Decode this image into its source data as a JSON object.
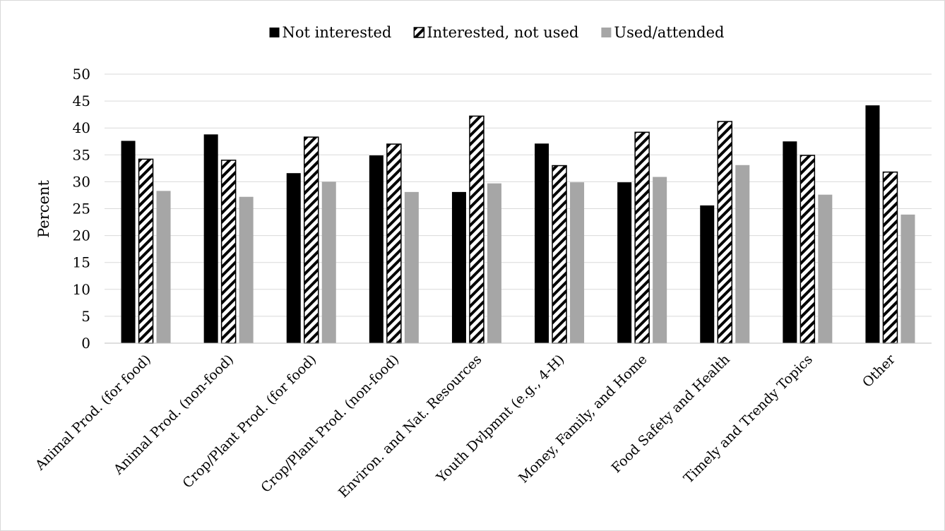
{
  "chart_data": {
    "type": "bar",
    "title": "",
    "xlabel": "",
    "ylabel": "Percent",
    "ylim": [
      0,
      50
    ],
    "yticks": [
      0,
      5,
      10,
      15,
      20,
      25,
      30,
      35,
      40,
      45,
      50
    ],
    "grid": true,
    "legend_position": "top-center",
    "categories": [
      "Animal Prod. (for food)",
      "Animal Prod. (non-food)",
      "Crop/Plant Prod. (for food)",
      "Crop/Plant Prod. (non-food)",
      "Environ. and Nat. Resources",
      "Youth Dvlpmnt (e.g., 4-H)",
      "Money, Family, and Home",
      "Food Safety and Health",
      "Timely and Trendy Topics",
      "Other"
    ],
    "series": [
      {
        "name": "Not interested",
        "fill": "solid",
        "color": "#000000",
        "values": [
          37.6,
          38.8,
          31.6,
          34.9,
          28.1,
          37.1,
          29.9,
          25.6,
          37.5,
          44.2
        ]
      },
      {
        "name": "Interested, not used",
        "fill": "diagonal-hatch",
        "color": "#000000",
        "values": [
          34.2,
          34.0,
          38.3,
          37.0,
          42.2,
          33.0,
          39.2,
          41.2,
          34.9,
          31.8
        ]
      },
      {
        "name": "Used/attended",
        "fill": "solid",
        "color": "#a6a6a6",
        "values": [
          28.3,
          27.2,
          30.0,
          28.1,
          29.7,
          29.9,
          30.9,
          33.1,
          27.6,
          23.9
        ]
      }
    ]
  }
}
